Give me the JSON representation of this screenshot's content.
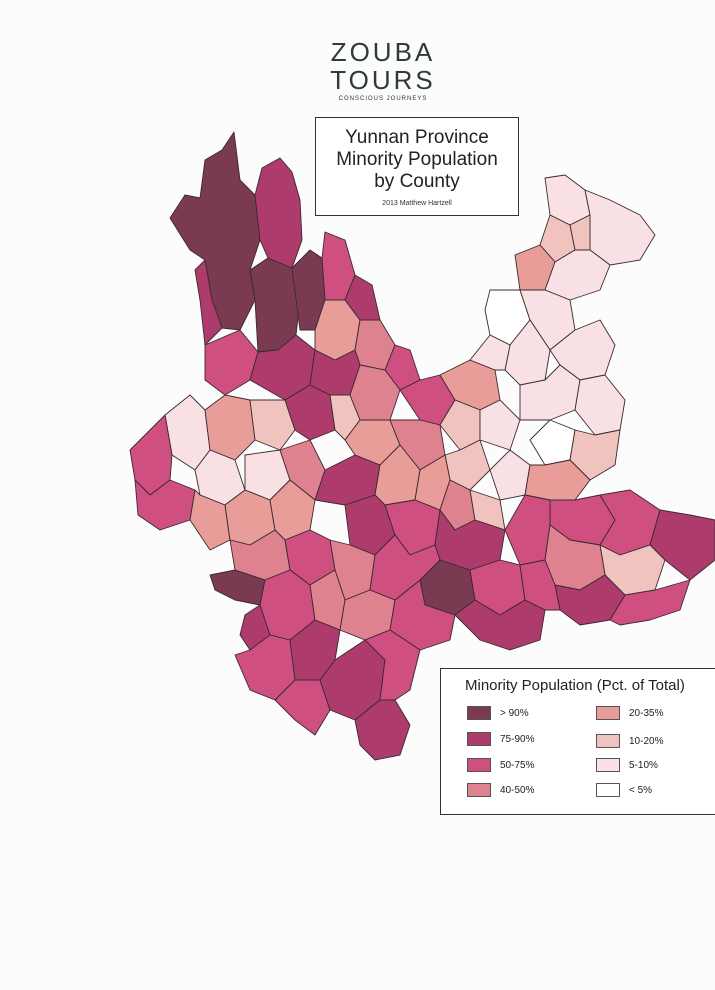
{
  "logo": {
    "line1": "ZOUBA",
    "line2": "TOURS",
    "tagline": "CONSCIOUS JOURNEYS"
  },
  "title": {
    "line1": "Yunnan Province",
    "line2": "Minority Population",
    "line3": "by County",
    "credit": "2013  Matthew Hartzell"
  },
  "legend": {
    "title": "Minority Population (Pct. of Total)",
    "items": [
      {
        "label": "> 90%",
        "color": "#7a3a52"
      },
      {
        "label": "75-90%",
        "color": "#ad3c6c"
      },
      {
        "label": "50-75%",
        "color": "#cf4f80"
      },
      {
        "label": "40-50%",
        "color": "#df8290"
      },
      {
        "label": "20-35%",
        "color": "#e89d98"
      },
      {
        "label": "10-20%",
        "color": "#f1c3be"
      },
      {
        "label": "5-10%",
        "color": "#f8e0e5"
      },
      {
        "label": "< 5%",
        "color": "#ffffff"
      }
    ]
  }
}
